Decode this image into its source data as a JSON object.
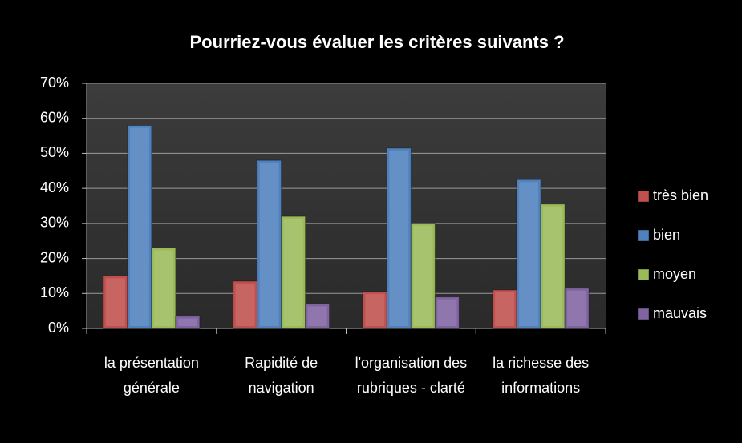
{
  "chart_data": {
    "type": "bar",
    "title": "Pourriez-vous évaluer les critères suivants ?",
    "categories": [
      "la présentation générale",
      "Rapidité de navigation",
      "l'organisation des rubriques - clarté",
      "la richesse des informations"
    ],
    "series": [
      {
        "name": "très bien",
        "color": "#c0504d",
        "values": [
          15,
          13.5,
          10.5,
          11
        ]
      },
      {
        "name": "bien",
        "color": "#4f81bd",
        "values": [
          58,
          48,
          51.5,
          42.5
        ]
      },
      {
        "name": "moyen",
        "color": "#9bbb59",
        "values": [
          23,
          32,
          30,
          35.5
        ]
      },
      {
        "name": "mauvais",
        "color": "#8064a2",
        "values": [
          3.5,
          7,
          9,
          11.5
        ]
      }
    ],
    "ylim": [
      0,
      70
    ],
    "yticks": [
      {
        "value": 0,
        "label": "0%"
      },
      {
        "value": 10,
        "label": "10%"
      },
      {
        "value": 20,
        "label": "20%"
      },
      {
        "value": 30,
        "label": "30%"
      },
      {
        "value": 40,
        "label": "40%"
      },
      {
        "value": 50,
        "label": "50%"
      },
      {
        "value": 60,
        "label": "60%"
      },
      {
        "value": 70,
        "label": "70%"
      }
    ],
    "grid": true,
    "legend": "right"
  }
}
